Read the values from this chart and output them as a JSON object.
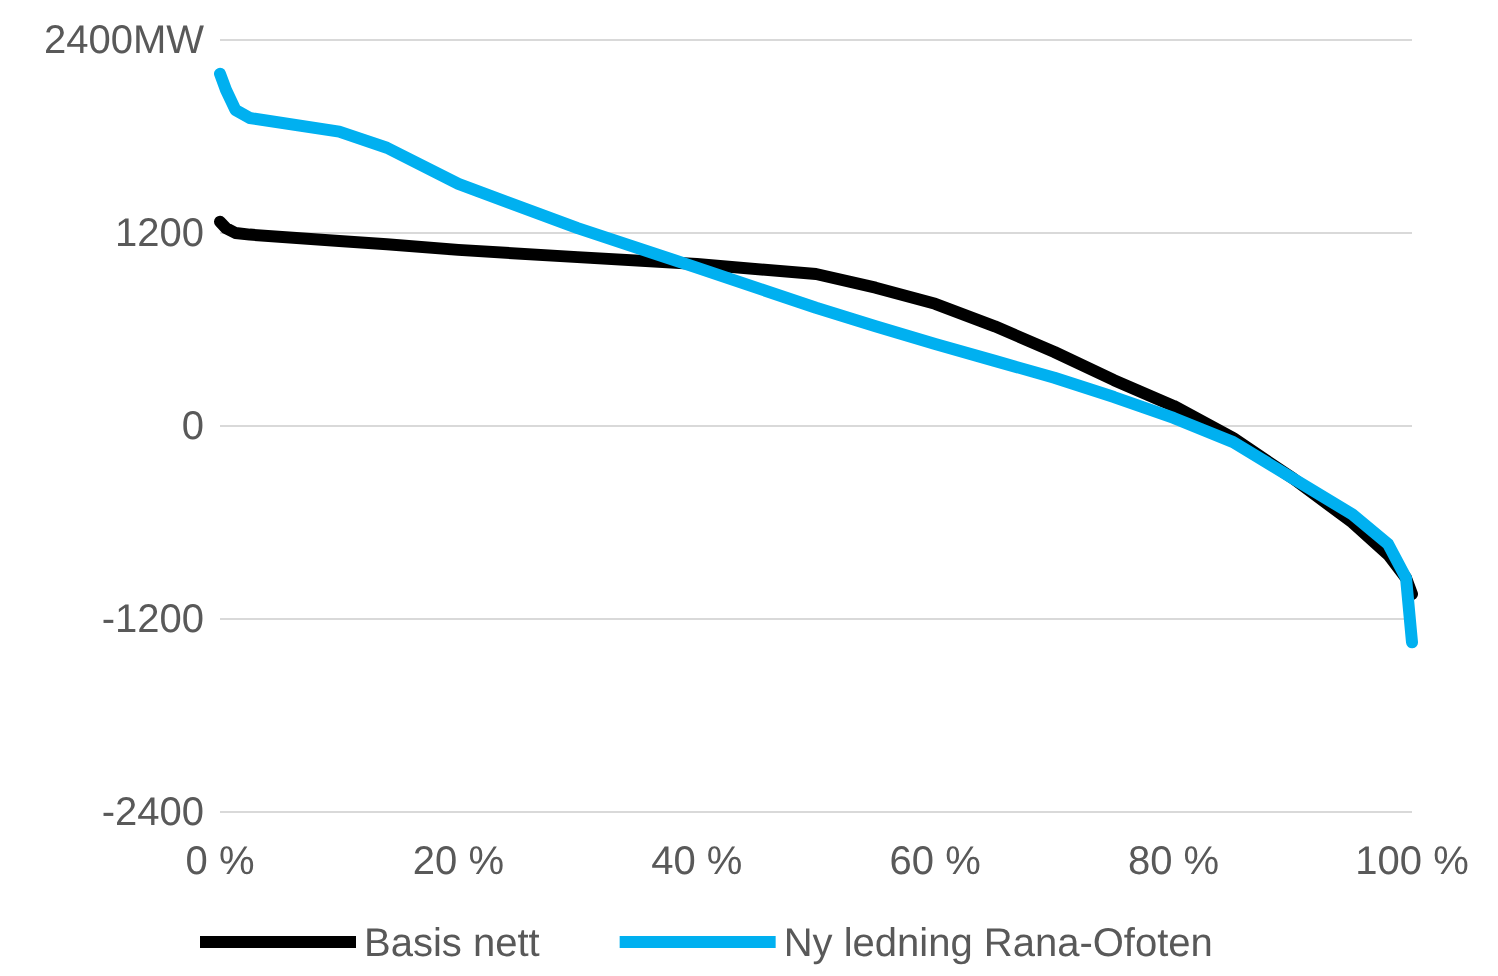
{
  "chart_data": {
    "type": "line",
    "x": [
      0,
      0.5,
      1.3,
      2.5,
      10,
      14,
      20,
      30,
      40,
      50,
      55,
      60,
      65,
      70,
      75,
      80,
      85,
      90,
      95,
      98,
      99.5,
      100
    ],
    "series": [
      {
        "name": "Basis nett",
        "color": "#000000",
        "values": [
          1270,
          1230,
          1200,
          1190,
          1150,
          1130,
          1095,
          1050,
          1007,
          945,
          860,
          760,
          620,
          460,
          285,
          125,
          -75,
          -325,
          -600,
          -800,
          -945,
          -1045
        ]
      },
      {
        "name": "Ny ledning Rana-Ofoten",
        "color": "#00b0f0",
        "values": [
          2190,
          2090,
          1965,
          1915,
          1830,
          1730,
          1505,
          1230,
          985,
          735,
          620,
          510,
          405,
          300,
          180,
          50,
          -100,
          -325,
          -550,
          -735,
          -945,
          -1345
        ]
      }
    ],
    "xlim": [
      0,
      100
    ],
    "xticks": [
      {
        "value": 0,
        "label": "0 %"
      },
      {
        "value": 20,
        "label": "20 %"
      },
      {
        "value": 40,
        "label": "40 %"
      },
      {
        "value": 60,
        "label": "60 %"
      },
      {
        "value": 80,
        "label": "80 %"
      },
      {
        "value": 100,
        "label": "100 %"
      }
    ],
    "ylim": [
      -2400,
      2400
    ],
    "yticks": [
      -2400,
      -1200,
      0,
      1200,
      {
        "value": 2400,
        "label": "2400MW"
      }
    ],
    "grid": "y",
    "legend": "bottom",
    "line_style": "solid",
    "marker": "none"
  }
}
